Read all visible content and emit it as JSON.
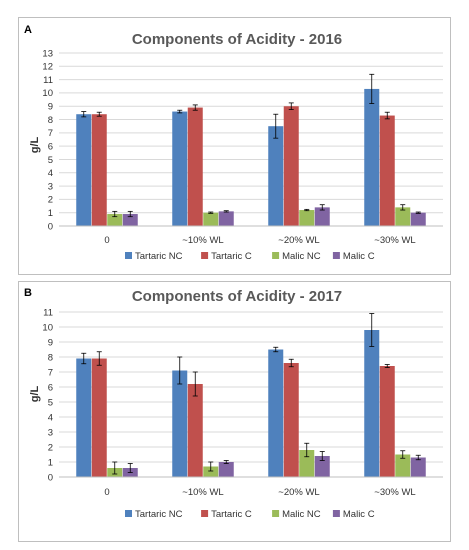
{
  "colors": {
    "tartaric_nc": "#4f81bd",
    "tartaric_c": "#c0504d",
    "malic_nc": "#9bbb59",
    "malic_c": "#8064a2"
  },
  "chart_data": [
    {
      "panel": "A",
      "type": "bar",
      "title": "Components of Acidity - 2016",
      "xlabel": "",
      "ylabel": "g/L",
      "ylim": [
        0,
        13
      ],
      "yticks": [
        "0",
        "1",
        "2",
        "3",
        "4",
        "5",
        "6",
        "7",
        "8",
        "9",
        "10",
        "11",
        "12",
        "13"
      ],
      "grid": true,
      "legend_position": "bottom",
      "categories": [
        "0",
        "~10% WL",
        "~20% WL",
        "~30% WL"
      ],
      "series": [
        {
          "name": "Tartaric NC",
          "values": [
            8.4,
            8.6,
            7.5,
            10.3
          ],
          "errors": [
            0.2,
            0.1,
            0.9,
            1.1
          ]
        },
        {
          "name": "Tartaric C",
          "values": [
            8.4,
            8.9,
            9.0,
            8.3
          ],
          "errors": [
            0.15,
            0.2,
            0.25,
            0.25
          ]
        },
        {
          "name": "Malic NC",
          "values": [
            0.9,
            1.0,
            1.2,
            1.4
          ],
          "errors": [
            0.2,
            0.05,
            0.05,
            0.2
          ]
        },
        {
          "name": "Malic C",
          "values": [
            0.9,
            1.1,
            1.4,
            1.0
          ],
          "errors": [
            0.2,
            0.05,
            0.2,
            0.05
          ]
        }
      ]
    },
    {
      "panel": "B",
      "type": "bar",
      "title": "Components of Acidity - 2017",
      "xlabel": "",
      "ylabel": "g/L",
      "ylim": [
        0,
        11
      ],
      "yticks": [
        "0",
        "1",
        "2",
        "3",
        "4",
        "5",
        "6",
        "7",
        "8",
        "9",
        "10",
        "11"
      ],
      "grid": true,
      "legend_position": "bottom",
      "categories": [
        "0",
        "~10% WL",
        "~20% WL",
        "~30% WL"
      ],
      "series": [
        {
          "name": "Tartaric NC",
          "values": [
            7.9,
            7.1,
            8.5,
            9.8
          ],
          "errors": [
            0.35,
            0.9,
            0.15,
            1.1
          ]
        },
        {
          "name": "Tartaric C",
          "values": [
            7.9,
            6.2,
            7.6,
            7.4
          ],
          "errors": [
            0.45,
            0.8,
            0.25,
            0.1
          ]
        },
        {
          "name": "Malic NC",
          "values": [
            0.6,
            0.7,
            1.8,
            1.5
          ],
          "errors": [
            0.4,
            0.3,
            0.45,
            0.25
          ]
        },
        {
          "name": "Malic C",
          "values": [
            0.6,
            1.0,
            1.4,
            1.3
          ],
          "errors": [
            0.3,
            0.1,
            0.3,
            0.15
          ]
        }
      ]
    }
  ]
}
